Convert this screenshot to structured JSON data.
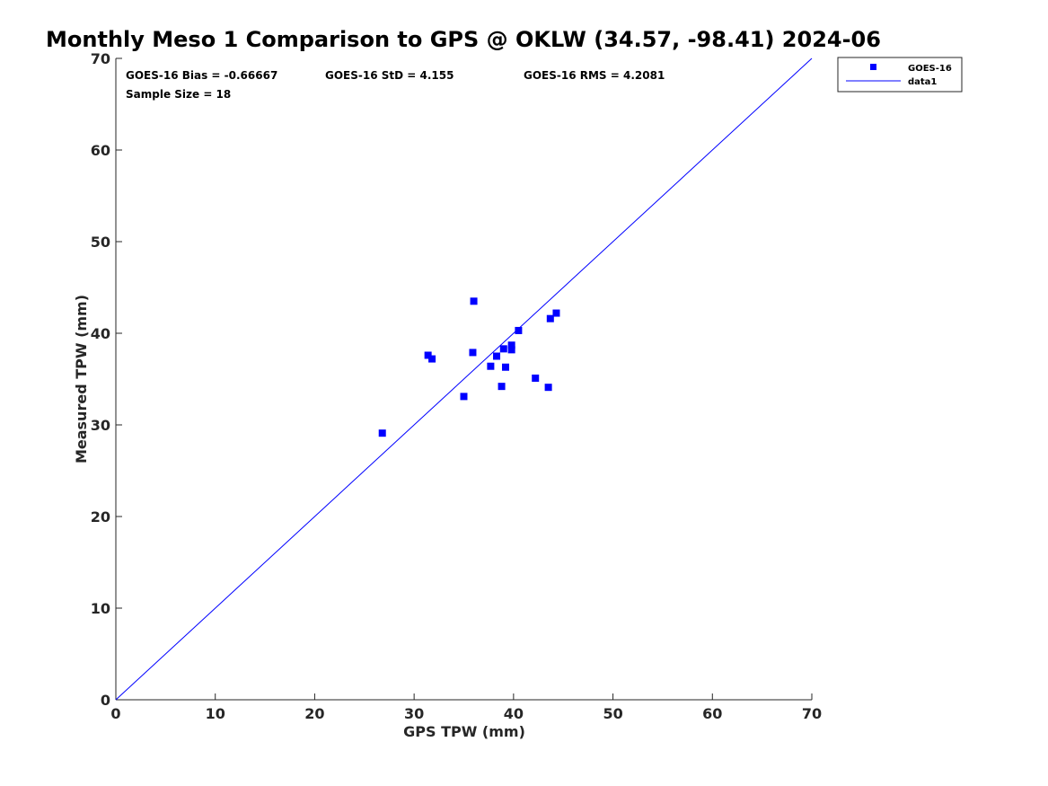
{
  "chart_data": {
    "type": "scatter",
    "title": "Monthly Meso 1 Comparison to GPS @ OKLW (34.57, -98.41) 2024-06",
    "xlabel": "GPS TPW (mm)",
    "ylabel": "Measured TPW (mm)",
    "xlim": [
      0,
      70
    ],
    "ylim": [
      0,
      70
    ],
    "xticks": [
      "0",
      "10",
      "20",
      "30",
      "40",
      "50",
      "60",
      "70"
    ],
    "yticks": [
      "0",
      "10",
      "20",
      "30",
      "40",
      "50",
      "60",
      "70"
    ],
    "grid": false,
    "legend_position": "top-right",
    "colors": {
      "marker": "#0000ff",
      "line": "#0000ff",
      "axis": "#262626"
    },
    "stats": {
      "bias": "GOES-16 Bias = -0.66667",
      "std": "GOES-16 StD = 4.155",
      "rms": "GOES-16 RMS = 4.2081",
      "sample": "Sample Size = 18"
    },
    "series": [
      {
        "name": "GOES-16",
        "type": "scatter",
        "marker": "square",
        "x": [
          26.8,
          31.4,
          31.8,
          35.0,
          35.9,
          36.0,
          37.7,
          38.3,
          38.8,
          39.0,
          39.2,
          39.8,
          39.8,
          40.5,
          42.2,
          43.5,
          43.7,
          44.3
        ],
        "y": [
          29.1,
          37.6,
          37.2,
          33.1,
          37.9,
          43.5,
          36.4,
          37.5,
          34.2,
          38.3,
          36.3,
          38.7,
          38.2,
          40.3,
          35.1,
          34.1,
          41.6,
          42.2
        ]
      },
      {
        "name": "data1",
        "type": "line",
        "x": [
          0,
          70
        ],
        "y": [
          0,
          70
        ]
      }
    ]
  }
}
